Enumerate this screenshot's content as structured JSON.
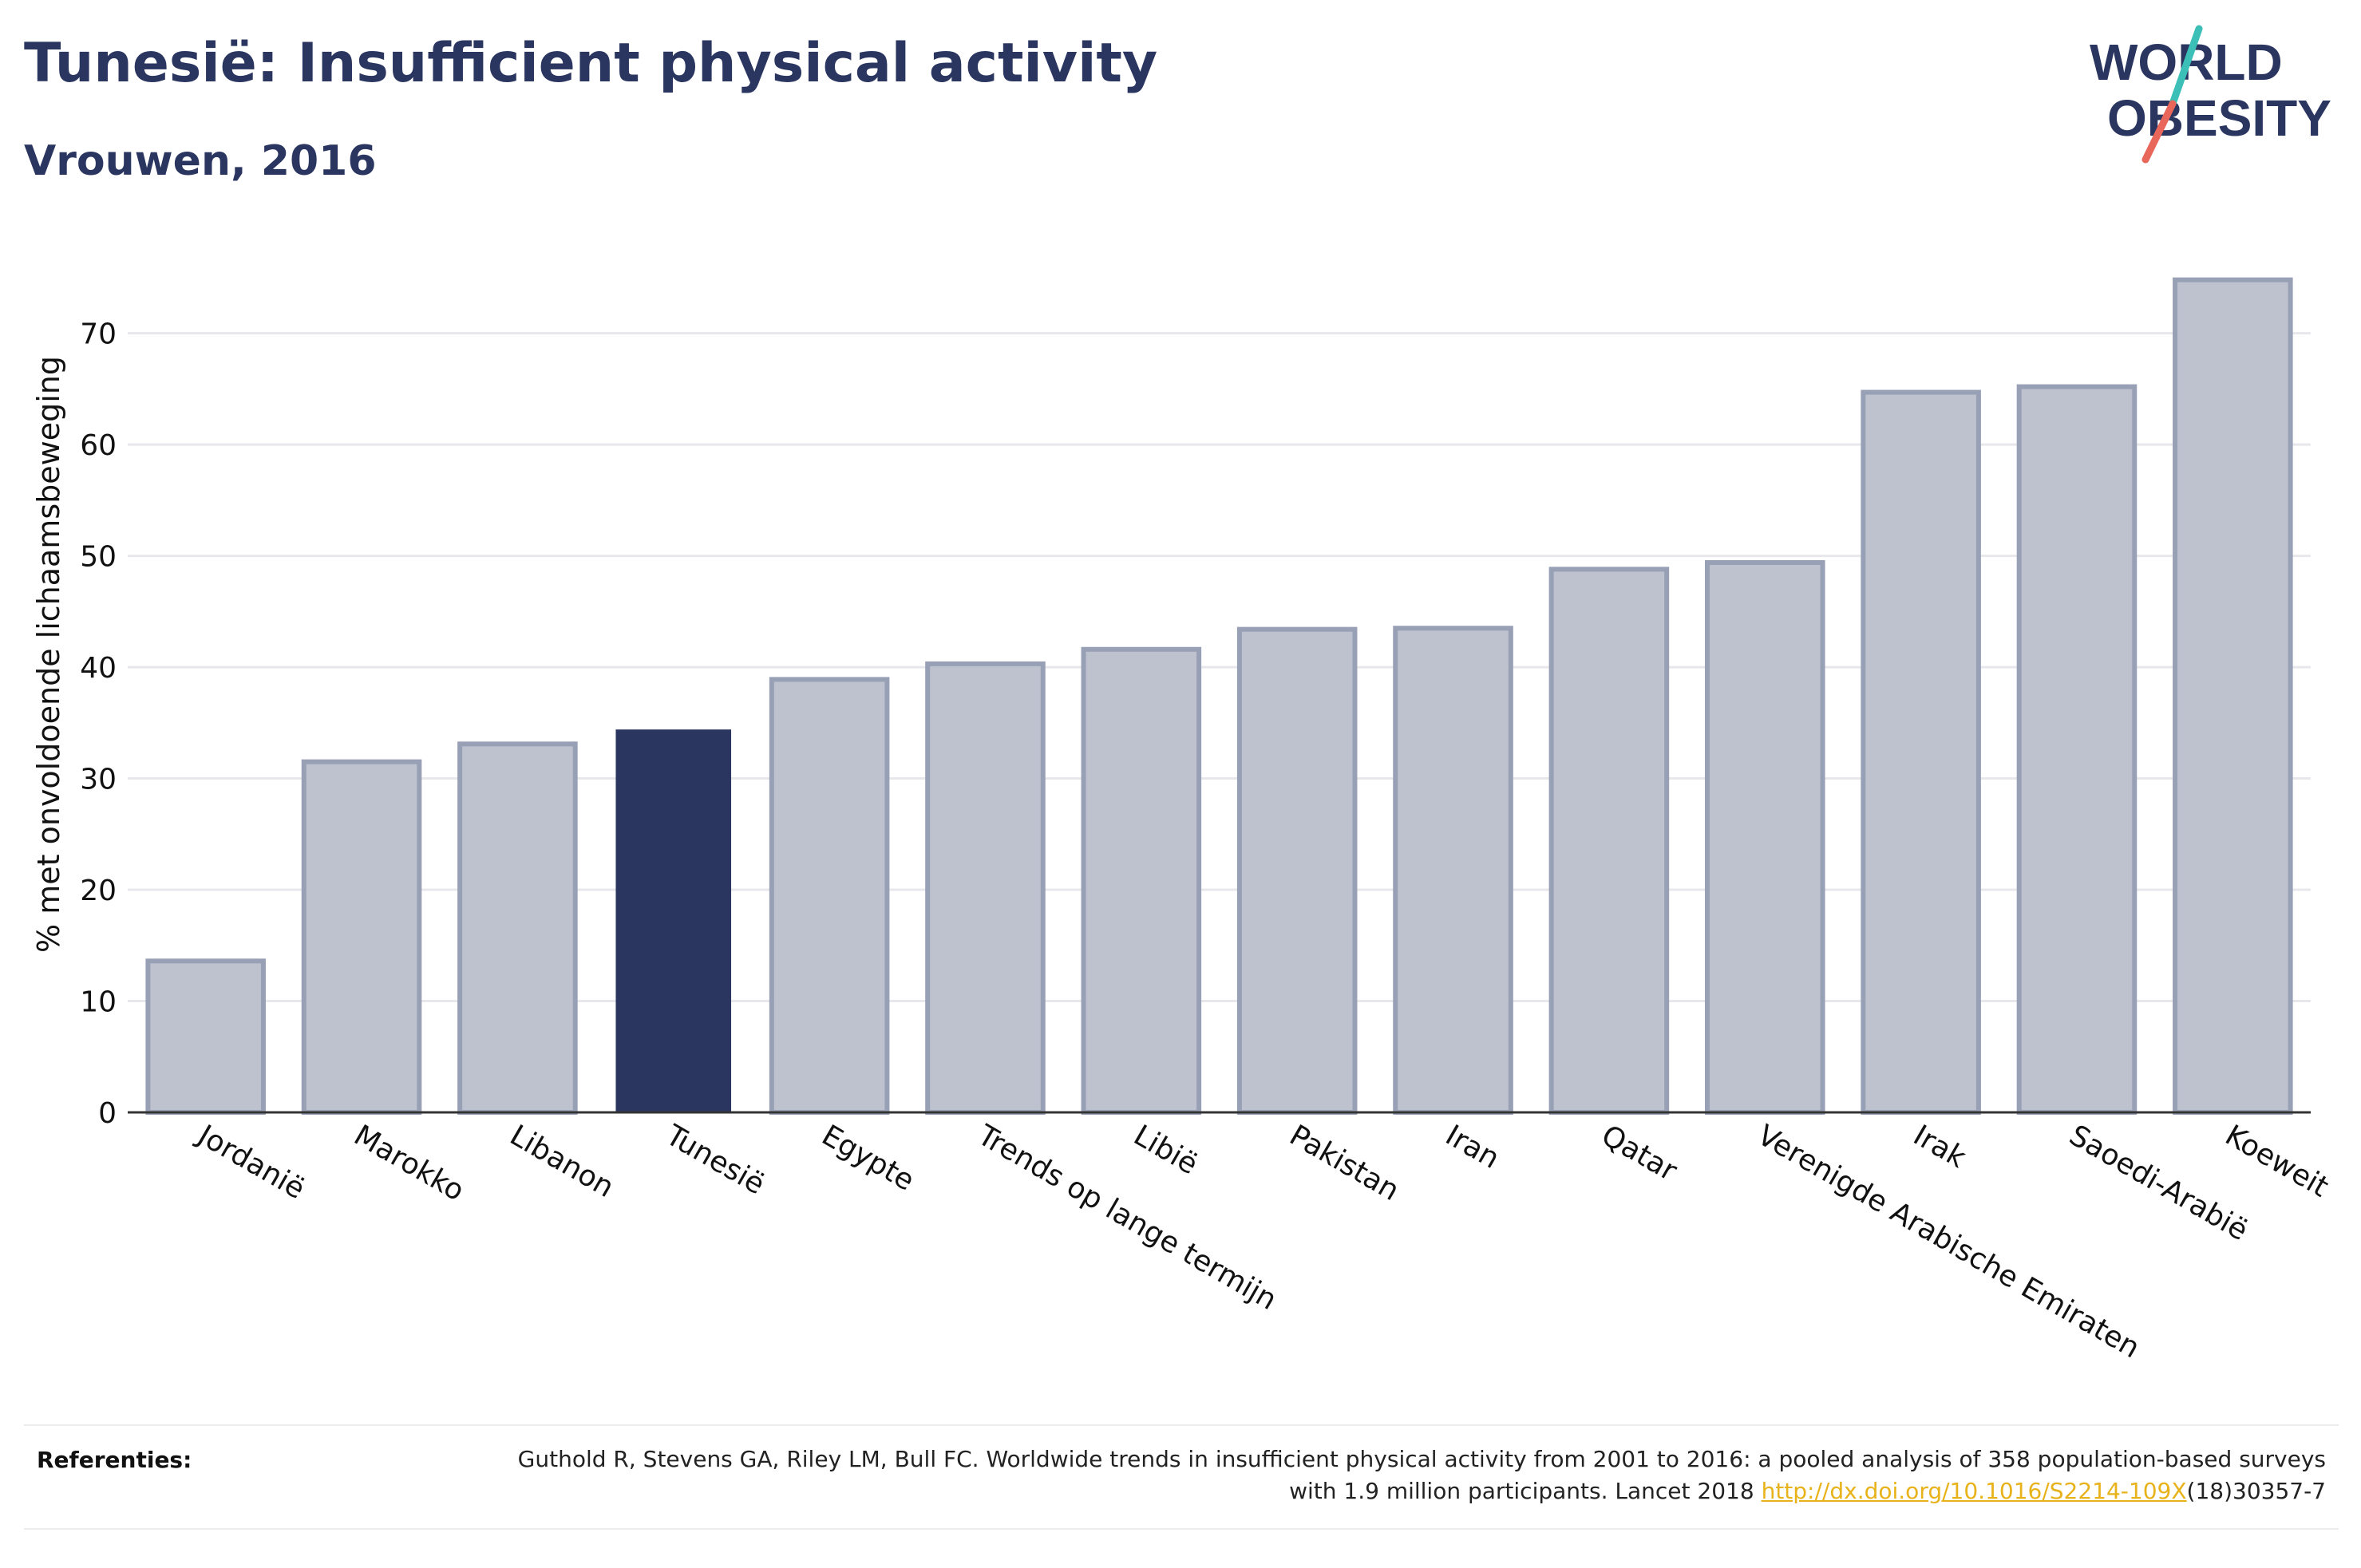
{
  "header": {
    "title": "Tunesië: Insufficient physical activity",
    "subtitle": "Vrouwen, 2016"
  },
  "logo": {
    "line1": "WORLD",
    "line2": "OBESITY",
    "colors": {
      "text": "#2a3560",
      "slash_top": "#3bbfb6",
      "slash_bottom": "#e8665a"
    }
  },
  "chart_data": {
    "type": "bar",
    "title": "Tunesië: Insufficient physical activity",
    "subtitle": "Vrouwen, 2016",
    "xlabel": "",
    "ylabel": "% met onvoldoende lichaamsbeweging",
    "ylim": [
      0,
      77
    ],
    "yticks": [
      0,
      10,
      20,
      30,
      40,
      50,
      60,
      70
    ],
    "grid": true,
    "categories": [
      "Jordanië",
      "Marokko",
      "Libanon",
      "Tunesië",
      "Egypte",
      "Trends op lange termijn",
      "Libië",
      "Pakistan",
      "Iran",
      "Qatar",
      "Verenigde Arabische Emiraten",
      "Irak",
      "Saoedi-Arabië",
      "Koeweit"
    ],
    "values": [
      13.6,
      31.5,
      33.1,
      34.4,
      38.9,
      40.3,
      41.6,
      43.4,
      43.5,
      48.8,
      49.4,
      64.7,
      65.2,
      74.8
    ],
    "highlight": "Tunesië",
    "colors": {
      "bar_fill": "#bec2cf",
      "bar_stroke": "#98a0b6",
      "highlight_fill": "#2a3560",
      "grid": "#e8e8ec",
      "axis": "#333333"
    }
  },
  "footer": {
    "label": "Referenties:",
    "reference_before": "Guthold R, Stevens GA, Riley LM, Bull FC. Worldwide trends in insufficient physical activity from 2001 to 2016: a pooled analysis of 358 population-based surveys with 1.9 million participants. Lancet 2018 ",
    "reference_link": "http://dx.doi.org/10.1016/S2214-109X",
    "reference_after": "(18)30357-7"
  }
}
